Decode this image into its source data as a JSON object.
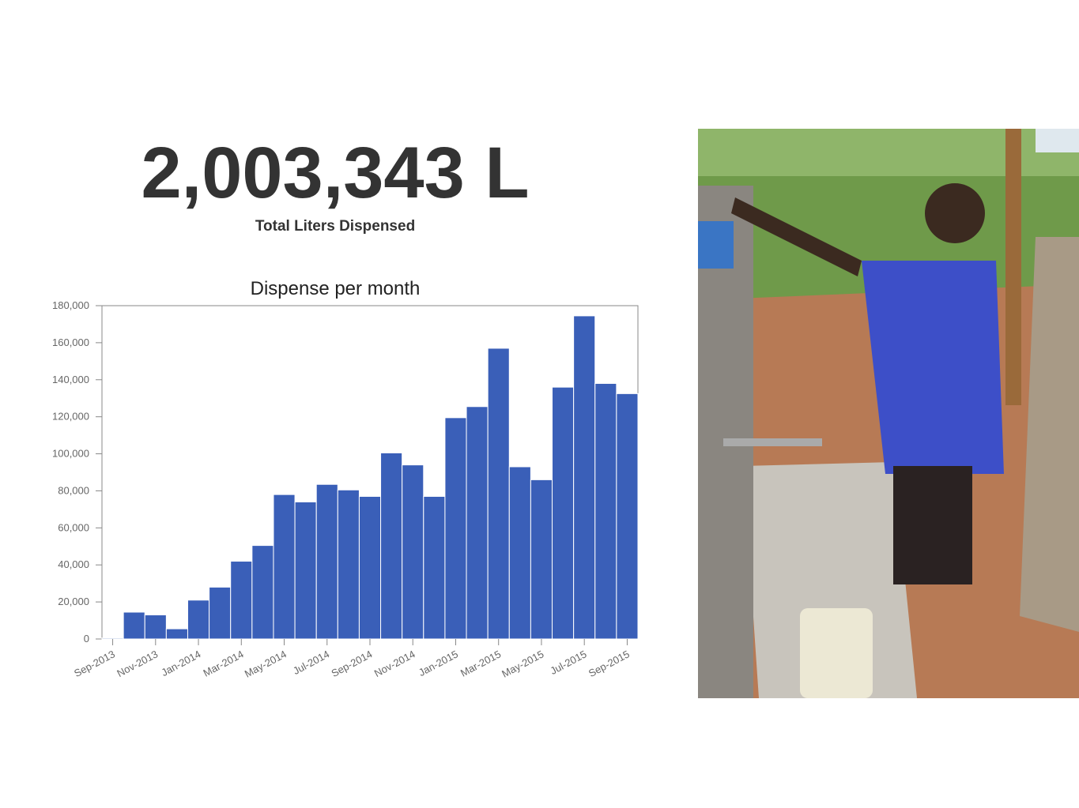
{
  "stat": {
    "value": "2,003,343 L",
    "label": "Total Liters Dispensed"
  },
  "chart_data": {
    "type": "bar",
    "title": "Dispense per month",
    "categories": [
      "Sep-2013",
      null,
      "Nov-2013",
      null,
      "Jan-2014",
      null,
      "Mar-2014",
      null,
      "May-2014",
      null,
      "Jul-2014",
      null,
      "Sep-2014",
      null,
      "Nov-2014",
      null,
      "Jan-2015",
      null,
      "Mar-2015",
      null,
      "May-2015",
      null,
      "Jul-2015",
      null,
      "Sep-2015"
    ],
    "values": [
      500,
      14500,
      13000,
      5500,
      21000,
      28000,
      42000,
      50500,
      78000,
      74000,
      83500,
      80500,
      77000,
      100500,
      94000,
      77000,
      119500,
      125500,
      157000,
      93000,
      86000,
      136000,
      174500,
      138000,
      132500
    ],
    "color": "#3a5fb8",
    "ylim": [
      0,
      180000
    ],
    "yticks": [
      0,
      {
        "value": 20000,
        "label": "20,000"
      },
      {
        "value": 40000,
        "label": "40,000"
      },
      {
        "value": 60000,
        "label": "60,000"
      },
      {
        "value": 80000,
        "label": "80,000"
      },
      {
        "value": 100000,
        "label": "100,000"
      },
      {
        "value": 120000,
        "label": "120,000"
      },
      {
        "value": 140000,
        "label": "140,000"
      },
      {
        "value": 160000,
        "label": "160,000"
      },
      {
        "value": 180000,
        "label": "180,000"
      }
    ],
    "grid": false
  }
}
